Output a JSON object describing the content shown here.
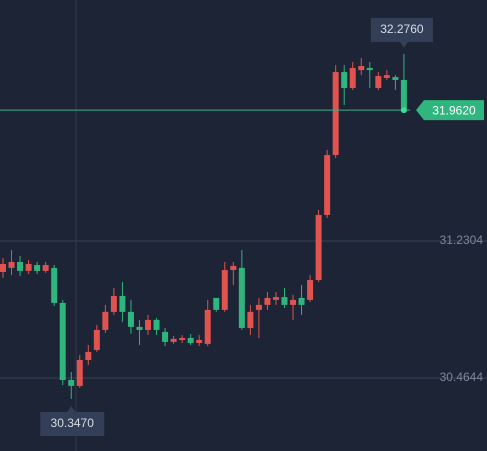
{
  "chart_data": {
    "type": "candlestick",
    "open": [
      31.057,
      31.08,
      31.113,
      31.063,
      31.096,
      31.063,
      31.08,
      30.884,
      30.453,
      30.42,
      30.565,
      30.621,
      30.733,
      30.834,
      30.923,
      30.834,
      30.75,
      30.733,
      30.789,
      30.722,
      30.666,
      30.677,
      30.688,
      30.66,
      30.655,
      30.912,
      30.845,
      31.068,
      31.08,
      30.744,
      30.845,
      30.873,
      30.901,
      30.917,
      30.873,
      30.912,
      30.901,
      31.012,
      31.376,
      31.711,
      32.175,
      32.086,
      32.186,
      32.198,
      32.086,
      32.142,
      32.147,
      32.131
    ],
    "high": [
      31.135,
      31.18,
      31.147,
      31.124,
      31.113,
      31.113,
      31.096,
      30.901,
      30.498,
      30.593,
      30.649,
      30.761,
      30.873,
      30.968,
      31.001,
      30.901,
      30.789,
      30.817,
      30.8,
      30.744,
      30.699,
      30.705,
      30.71,
      30.705,
      30.901,
      30.912,
      31.113,
      31.113,
      31.18,
      30.873,
      30.912,
      30.945,
      30.945,
      30.968,
      30.929,
      30.984,
      31.04,
      31.404,
      31.739,
      32.214,
      32.214,
      32.231,
      32.254,
      32.231,
      32.175,
      32.186,
      32.158,
      32.276
    ],
    "low": [
      31.024,
      31.04,
      31.035,
      31.046,
      31.046,
      31.052,
      30.867,
      30.425,
      30.347,
      30.409,
      30.537,
      30.61,
      30.716,
      30.817,
      30.778,
      30.711,
      30.649,
      30.705,
      30.705,
      30.643,
      30.655,
      30.66,
      30.649,
      30.643,
      30.643,
      30.834,
      30.834,
      30.984,
      30.733,
      30.705,
      30.688,
      30.845,
      30.873,
      30.856,
      30.789,
      30.817,
      30.889,
      31.001,
      31.359,
      31.694,
      31.991,
      32.075,
      32.158,
      32.086,
      32.075,
      32.131,
      32.075,
      31.952
    ],
    "close": [
      31.102,
      31.113,
      31.063,
      31.102,
      31.063,
      31.096,
      30.884,
      30.453,
      30.42,
      30.565,
      30.61,
      30.733,
      30.834,
      30.923,
      30.834,
      30.75,
      30.733,
      30.789,
      30.733,
      30.666,
      30.683,
      30.688,
      30.66,
      30.677,
      30.845,
      30.845,
      31.068,
      31.091,
      30.744,
      30.834,
      30.873,
      30.912,
      30.917,
      30.873,
      30.901,
      30.873,
      31.012,
      31.376,
      31.711,
      32.175,
      32.086,
      32.198,
      32.209,
      32.186,
      32.153,
      32.158,
      32.131,
      31.962
    ],
    "up_color": "#e0534e",
    "down_color": "#2fb57e",
    "ylim": [
      30.056,
      32.578
    ],
    "yticks": [
      31.2304,
      30.4644
    ],
    "grid": true,
    "high_label": {
      "value": 32.276,
      "label": "32.2760"
    },
    "low_label": {
      "value": 30.347,
      "label": "30.3470"
    },
    "last_price": {
      "value": 31.962,
      "label": "31.9620"
    }
  }
}
